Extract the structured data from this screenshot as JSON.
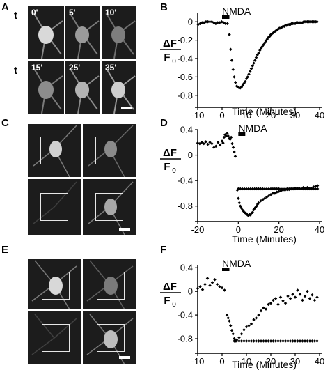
{
  "panels": {
    "A": {
      "letter": "A",
      "row_label": "t",
      "timepoints": [
        "0'",
        "5'",
        "10'",
        "15'",
        "25'",
        "35'"
      ]
    },
    "B": {
      "letter": "B"
    },
    "C": {
      "letter": "C"
    },
    "D": {
      "letter": "D"
    },
    "E": {
      "letter": "E"
    },
    "F": {
      "letter": "F"
    }
  },
  "colors": {
    "micrograph_bg": "#1c1c1c",
    "roi_box": "#e6e6e6",
    "scalebar": "#ffffff",
    "data_points": "#000000"
  },
  "chart_data": [
    {
      "panel": "B",
      "type": "scatter",
      "annotation": "NMDA",
      "stimulus_bar": [
        0,
        3
      ],
      "xlabel": "Time (Minutes)",
      "ylabel_num": "ΔF",
      "ylabel_den": "F",
      "ylabel_sub": "0",
      "xlim": [
        -10,
        40
      ],
      "ylim": [
        -0.9,
        0.1
      ],
      "xticks": [
        -10,
        0,
        10,
        20,
        30,
        40
      ],
      "yticks": [
        0,
        -0.2,
        -0.4,
        -0.6,
        -0.8
      ],
      "xticklabels": [
        "-10",
        "0",
        "10",
        "20",
        "30",
        "40"
      ],
      "yticklabels": [
        "0",
        "-0.2",
        "-0.4",
        "-0.6",
        "-0.8"
      ],
      "series": [
        {
          "x": [
            -9.8,
            -9,
            -8.2,
            -7.4,
            -6.6,
            -5.8,
            -5,
            -4.2,
            -3.4,
            -2.6,
            -1.8,
            -1,
            -0.2,
            0.6,
            1.4,
            2.2,
            3,
            3.5,
            4,
            4.5,
            5,
            5.5,
            6,
            6.5,
            7,
            7.5,
            8,
            8.5,
            9,
            9.5,
            10,
            10.5,
            11,
            11.5,
            12,
            12.5,
            13,
            13.5,
            14,
            14.5,
            15,
            15.5,
            16,
            16.5,
            17,
            17.5,
            18,
            18.5,
            19,
            19.5,
            20,
            20.5,
            21,
            21.5,
            22,
            22.5,
            23,
            23.5,
            24,
            24.5,
            25,
            25.5,
            26,
            26.5,
            27,
            27.5,
            28,
            28.5,
            29,
            29.5,
            30,
            30.5,
            31,
            31.5,
            32,
            32.5,
            33,
            33.5,
            34,
            34.5,
            35,
            35.5,
            36,
            36.5,
            37,
            37.5,
            38,
            38.5,
            39
          ],
          "y": [
            -0.03,
            -0.02,
            -0.01,
            -0.01,
            0,
            0,
            0,
            0,
            -0.01,
            -0.02,
            -0.01,
            -0.01,
            0,
            -0.01,
            -0.02,
            -0.02,
            -0.14,
            -0.3,
            -0.42,
            -0.52,
            -0.6,
            -0.66,
            -0.7,
            -0.71,
            -0.72,
            -0.72,
            -0.71,
            -0.69,
            -0.67,
            -0.65,
            -0.62,
            -0.6,
            -0.57,
            -0.54,
            -0.51,
            -0.48,
            -0.45,
            -0.42,
            -0.39,
            -0.36,
            -0.34,
            -0.31,
            -0.29,
            -0.27,
            -0.25,
            -0.23,
            -0.21,
            -0.19,
            -0.17,
            -0.16,
            -0.14,
            -0.13,
            -0.12,
            -0.11,
            -0.1,
            -0.09,
            -0.08,
            -0.07,
            -0.07,
            -0.06,
            -0.05,
            -0.05,
            -0.04,
            -0.04,
            -0.03,
            -0.03,
            -0.03,
            -0.02,
            -0.02,
            -0.02,
            -0.02,
            -0.01,
            -0.01,
            -0.01,
            -0.01,
            -0.01,
            -0.01,
            0,
            0,
            0,
            0,
            0,
            0,
            0,
            0,
            0,
            0,
            0,
            0
          ]
        }
      ]
    },
    {
      "panel": "D",
      "type": "scatter",
      "annotation": "NMDA",
      "stimulus_bar": [
        0,
        3
      ],
      "xlabel": "Time (Minutes)",
      "ylabel_num": "ΔF",
      "ylabel_den": "F",
      "ylabel_sub": "0",
      "xlim": [
        -20,
        40
      ],
      "ylim": [
        -1.0,
        0.4
      ],
      "xticks": [
        -20,
        0,
        20,
        40
      ],
      "yticks": [
        0.4,
        0,
        -0.4,
        -0.8
      ],
      "xticklabels": [
        "-20",
        "0",
        "20",
        "40"
      ],
      "yticklabels": [
        "0.4",
        "0",
        "-0.4",
        "-0.8"
      ],
      "series": [
        {
          "x": [
            -20,
            -19,
            -18,
            -17,
            -16,
            -15,
            -14,
            -13,
            -12,
            -11,
            -10,
            -9,
            -8,
            -7.5,
            -7,
            -6.5,
            -6,
            -5.5,
            -5,
            -4.5,
            -4,
            -3.5,
            -3,
            -2.5,
            -2,
            -1.5
          ],
          "y": [
            0.19,
            0.18,
            0.2,
            0.18,
            0.21,
            0.17,
            0.2,
            0.18,
            0.12,
            0.14,
            0.2,
            0.16,
            0.22,
            0.19,
            0.28,
            0.32,
            0.3,
            0.34,
            0.3,
            0.26,
            0.25,
            0.28,
            0.18,
            0.12,
            0.05,
            -0.02
          ]
        },
        {
          "x": [
            -0.5,
            0,
            0.5,
            1,
            1.5,
            2,
            2.5,
            3,
            3.5,
            4,
            4.5,
            5,
            5.5,
            6,
            6.5,
            7,
            7.5,
            8,
            8.5,
            9,
            9.5,
            10,
            11,
            12,
            13,
            14,
            15,
            16,
            17,
            18,
            19,
            20,
            21,
            22,
            23,
            24,
            25,
            26,
            27,
            28,
            29,
            30,
            31,
            32,
            33,
            34,
            35,
            36,
            37,
            38,
            39
          ],
          "y": [
            -0.55,
            -0.68,
            -0.75,
            -0.8,
            -0.83,
            -0.86,
            -0.88,
            -0.9,
            -0.91,
            -0.92,
            -0.94,
            -0.95,
            -0.93,
            -0.94,
            -0.91,
            -0.9,
            -0.86,
            -0.84,
            -0.82,
            -0.8,
            -0.77,
            -0.75,
            -0.72,
            -0.7,
            -0.68,
            -0.66,
            -0.64,
            -0.62,
            -0.6,
            -0.6,
            -0.58,
            -0.57,
            -0.56,
            -0.55,
            -0.55,
            -0.54,
            -0.54,
            -0.53,
            -0.53,
            -0.52,
            -0.52,
            -0.52,
            -0.53,
            -0.51,
            -0.52,
            -0.51,
            -0.52,
            -0.52,
            -0.5,
            -0.49,
            -0.48
          ]
        },
        {
          "x": [
            0,
            1,
            2,
            3,
            4,
            5,
            6,
            7,
            8,
            9,
            10,
            11,
            12,
            13,
            14,
            15,
            16,
            17,
            18,
            19,
            20,
            21,
            22,
            23,
            24,
            25,
            26,
            27,
            28,
            29,
            30,
            31,
            32,
            33,
            34,
            35,
            36,
            37,
            38,
            39
          ],
          "y": [
            -0.53,
            -0.53,
            -0.53,
            -0.53,
            -0.53,
            -0.53,
            -0.53,
            -0.53,
            -0.53,
            -0.53,
            -0.53,
            -0.53,
            -0.53,
            -0.53,
            -0.53,
            -0.53,
            -0.53,
            -0.53,
            -0.53,
            -0.53,
            -0.53,
            -0.53,
            -0.53,
            -0.53,
            -0.53,
            -0.53,
            -0.53,
            -0.53,
            -0.53,
            -0.53,
            -0.53,
            -0.53,
            -0.53,
            -0.53,
            -0.53,
            -0.53,
            -0.53,
            -0.53,
            -0.53,
            -0.53
          ]
        }
      ]
    },
    {
      "panel": "F",
      "type": "scatter",
      "annotation": "NMDA",
      "stimulus_bar": [
        0,
        3
      ],
      "xlabel": "Time (Minutes)",
      "ylabel_num": "ΔF",
      "ylabel_den": "F",
      "ylabel_sub": "0",
      "xlim": [
        -10,
        40
      ],
      "ylim": [
        -1.0,
        0.45
      ],
      "xticks": [
        -10,
        0,
        10,
        20,
        30,
        40
      ],
      "yticks": [
        0.4,
        0,
        -0.4,
        -0.8
      ],
      "xticklabels": [
        "-10",
        "0",
        "10",
        "20",
        "30",
        "40"
      ],
      "yticklabels": [
        "0.4",
        "0",
        "-0.4",
        "-0.8"
      ],
      "series": [
        {
          "x": [
            -10,
            -9,
            -8,
            -7,
            -6,
            -5,
            -4,
            -3,
            -2,
            -1,
            0,
            1
          ],
          "y": [
            0.05,
            0.08,
            0.03,
            0.12,
            0.22,
            0.1,
            0.15,
            0.2,
            0.12,
            0.08,
            0.06,
            0.02
          ]
        },
        {
          "x": [
            2,
            2.5,
            3,
            3.5,
            4,
            4.5,
            5,
            5.5,
            6,
            7,
            8,
            9,
            10,
            11,
            12,
            13,
            14,
            15,
            16,
            17,
            18,
            19,
            20,
            21,
            22,
            23,
            24,
            25,
            26,
            27,
            28,
            29,
            30,
            31,
            32,
            33,
            34,
            35,
            36,
            37,
            38,
            39
          ],
          "y": [
            -0.4,
            -0.45,
            -0.5,
            -0.58,
            -0.66,
            -0.72,
            -0.8,
            -0.84,
            -0.82,
            -0.78,
            -0.72,
            -0.65,
            -0.6,
            -0.58,
            -0.55,
            -0.48,
            -0.45,
            -0.4,
            -0.33,
            -0.28,
            -0.3,
            -0.22,
            -0.2,
            -0.15,
            -0.12,
            -0.22,
            -0.1,
            -0.16,
            -0.2,
            -0.08,
            -0.12,
            -0.05,
            -0.1,
            0.02,
            -0.05,
            -0.15,
            -0.08,
            0.0,
            -0.12,
            -0.06,
            -0.15,
            -0.1
          ]
        },
        {
          "x": [
            5,
            6,
            7,
            8,
            9,
            10,
            11,
            12,
            13,
            14,
            15,
            16,
            17,
            18,
            19,
            20,
            21,
            22,
            23,
            24,
            25,
            26,
            27,
            28,
            29,
            30,
            31,
            32,
            33,
            34,
            35,
            36,
            37,
            38,
            39
          ],
          "y": [
            -0.84,
            -0.84,
            -0.84,
            -0.84,
            -0.84,
            -0.84,
            -0.84,
            -0.84,
            -0.84,
            -0.84,
            -0.84,
            -0.84,
            -0.84,
            -0.84,
            -0.84,
            -0.84,
            -0.84,
            -0.84,
            -0.84,
            -0.84,
            -0.84,
            -0.84,
            -0.84,
            -0.84,
            -0.84,
            -0.84,
            -0.84,
            -0.84,
            -0.84,
            -0.84,
            -0.84,
            -0.84,
            -0.84,
            -0.84,
            -0.84
          ]
        }
      ]
    }
  ]
}
